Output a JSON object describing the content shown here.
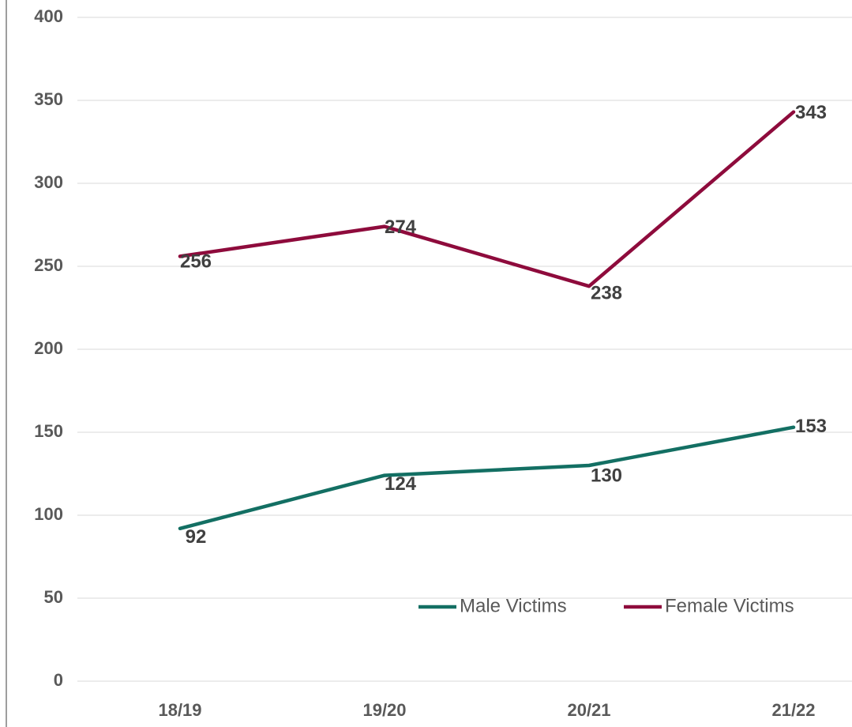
{
  "chart_data": {
    "type": "line",
    "categories": [
      "18/19",
      "19/20",
      "20/21",
      "21/22"
    ],
    "series": [
      {
        "name": "Male Victims",
        "color": "#136f63",
        "values": [
          92,
          124,
          130,
          153
        ]
      },
      {
        "name": "Female Victims",
        "color": "#8e0b3c",
        "values": [
          256,
          274,
          238,
          343
        ]
      }
    ],
    "ylim": [
      0,
      400
    ],
    "yticks": [
      0,
      50,
      100,
      150,
      200,
      250,
      300,
      350,
      400
    ],
    "grid": true,
    "legend": "lower right"
  }
}
